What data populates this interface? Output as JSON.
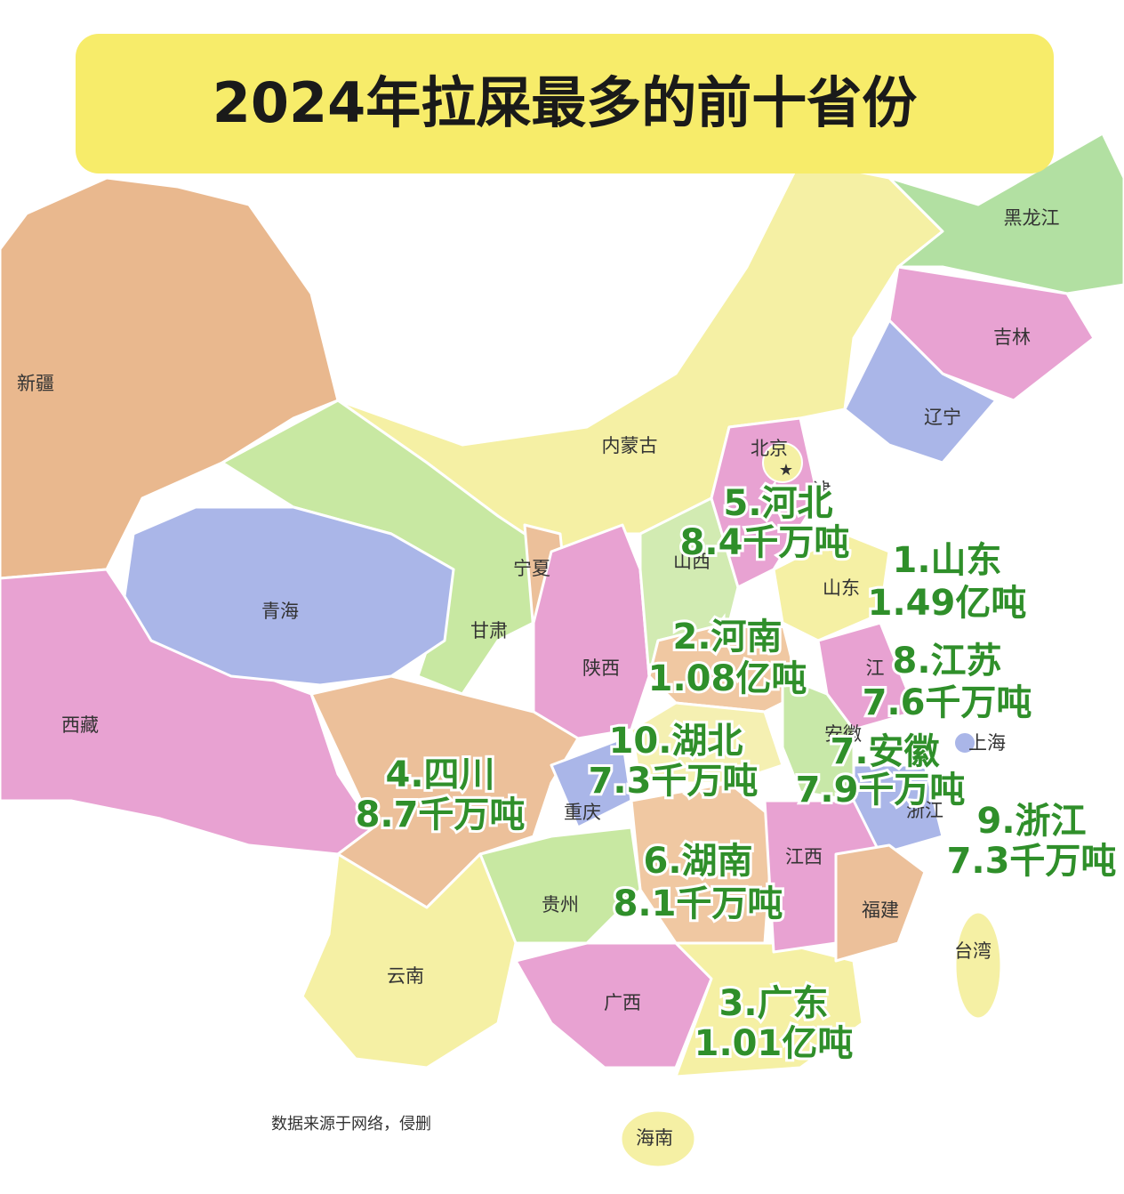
{
  "title": "2024年拉屎最多的前十省份",
  "provinces": [
    "新疆",
    "西藏",
    "青海",
    "甘肃",
    "内蒙古",
    "宁夏",
    "陕西",
    "山西",
    "北京",
    "津",
    "黑龙江",
    "吉林",
    "辽宁",
    "山东",
    "江",
    "安徽",
    "上海",
    "浙江",
    "重庆",
    "贵州",
    "云南",
    "广西",
    "江西",
    "福建",
    "台湾",
    "海南"
  ],
  "ranking": [
    {
      "label": "1.山东",
      "amount": "1.49亿吨"
    },
    {
      "label": "2.河南",
      "amount": "1.08亿吨"
    },
    {
      "label": "3.广东",
      "amount": "1.01亿吨"
    },
    {
      "label": "4.四川",
      "amount": "8.7千万吨"
    },
    {
      "label": "5.河北",
      "amount": "8.4千万吨"
    },
    {
      "label": "6.湖南",
      "amount": "8.1千万吨"
    },
    {
      "label": "7.安徽",
      "amount": "7.9千万吨"
    },
    {
      "label": "8.江苏",
      "amount": "7.6千万吨"
    },
    {
      "label": "9.浙江",
      "amount": "7.3千万吨"
    },
    {
      "label": "10.湖北",
      "amount": "7.3千万吨"
    }
  ],
  "source_note": "数据来源于网络，侵删"
}
